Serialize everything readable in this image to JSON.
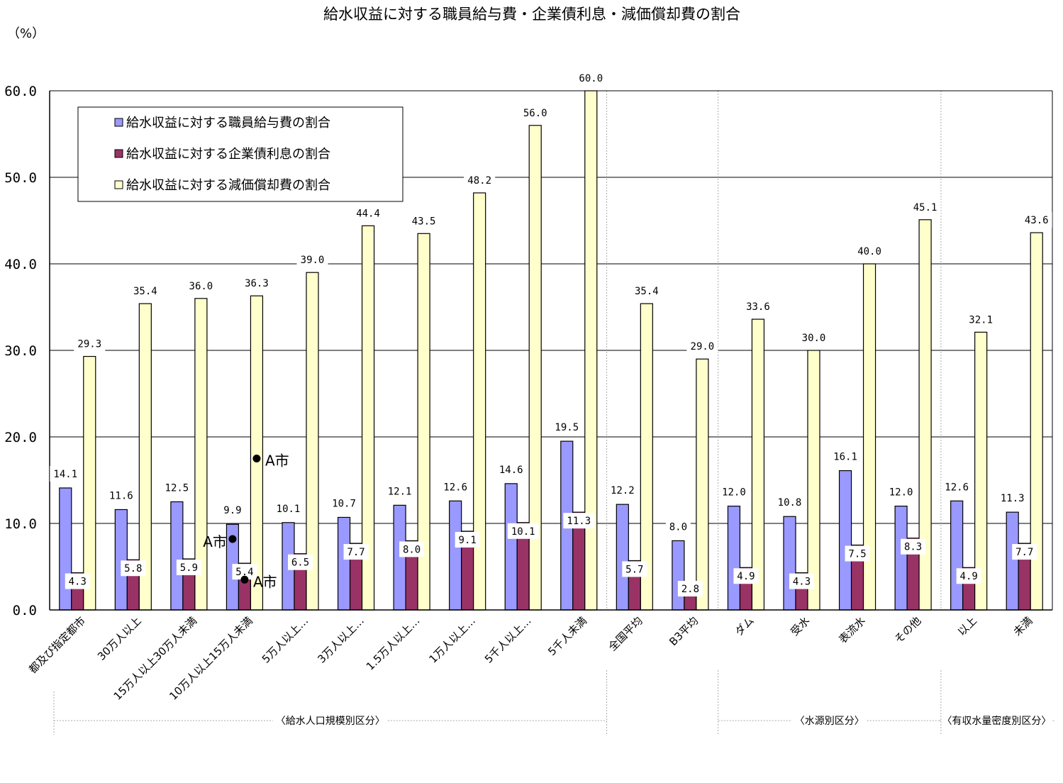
{
  "chart_data": {
    "type": "bar",
    "title": "給水収益に対する職員給与費・企業債利息・減価償却費の割合",
    "unit_label": "（%）",
    "ylim": [
      0,
      60
    ],
    "yticks": [
      "0.0",
      "10.0",
      "20.0",
      "30.0",
      "40.0",
      "50.0",
      "60.0"
    ],
    "grid": true,
    "legend_placement": "top-left",
    "categories": [
      "都及び指定都市",
      "30万人以上",
      "15万人以上30万人未満",
      "10万人以上15万人未満",
      "5万人以上…",
      "3万人以上…",
      "1.5万人以上…",
      "1万人以上…",
      "5千人以上…",
      "5千人未満",
      "全国平均",
      "B3平均",
      "ダム",
      "受水",
      "表流水",
      "その他",
      "以上",
      "未満"
    ],
    "series": [
      {
        "name": "給水収益に対する職員給与費の割合",
        "color": "#9999ff",
        "values": [
          14.1,
          11.6,
          12.5,
          9.9,
          10.1,
          10.7,
          12.1,
          12.6,
          14.6,
          19.5,
          12.2,
          8.0,
          12.0,
          10.8,
          16.1,
          12.0,
          12.6,
          11.3
        ]
      },
      {
        "name": "給水収益に対する企業債利息の割合",
        "color": "#993366",
        "values": [
          4.3,
          5.8,
          5.9,
          5.4,
          6.5,
          7.7,
          8.0,
          9.1,
          10.1,
          11.3,
          5.7,
          2.8,
          4.9,
          4.3,
          7.5,
          8.3,
          4.9,
          7.7
        ]
      },
      {
        "name": "給水収益に対する減価償却費の割合",
        "color": "#ffffcc",
        "values": [
          29.3,
          35.4,
          36.0,
          36.3,
          39.0,
          44.4,
          43.5,
          48.2,
          56.0,
          60.0,
          35.4,
          29.0,
          33.6,
          30.0,
          40.0,
          45.1,
          32.1,
          43.6
        ]
      }
    ],
    "value_labels": [
      [
        "14.1",
        "11.6",
        "12.5",
        "9.9",
        "10.1",
        "10.7",
        "12.1",
        "12.6",
        "14.6",
        "19.5",
        "12.2",
        "8.0",
        "12.0",
        "10.8",
        "16.1",
        "12.0",
        "12.6",
        "11.3"
      ],
      [
        "4.3",
        "5.8",
        "5.9",
        "5.4",
        "6.5",
        "7.7",
        "8.0",
        "9.1",
        "10.1",
        "11.3",
        "5.7",
        "2.8",
        "4.9",
        "4.3",
        "7.5",
        "8.3",
        "4.9",
        "7.7"
      ],
      [
        "29.3",
        "35.4",
        "36.0",
        "36.3",
        "39.0",
        "44.4",
        "43.5",
        "48.2",
        "56.0",
        "60.0",
        "35.4",
        "29.0",
        "33.6",
        "30.0",
        "40.0",
        "45.1",
        "32.1",
        "43.6"
      ]
    ],
    "groups": [
      {
        "label": "〈給水人口規模別区分〉",
        "from": 0,
        "to": 9
      },
      {
        "label": "〈水源別区分〉",
        "from": 12,
        "to": 15
      },
      {
        "label": "〈有収水量密度別区分〉",
        "from": 16,
        "to": 17
      }
    ],
    "annotations": [
      {
        "text": "A市",
        "category": 3,
        "series": 0,
        "value": 8.2
      },
      {
        "text": "A市",
        "category": 3,
        "series": 1,
        "value": 3.5
      },
      {
        "text": "A市",
        "category": 3,
        "series": 2,
        "value": 17.5
      }
    ]
  }
}
